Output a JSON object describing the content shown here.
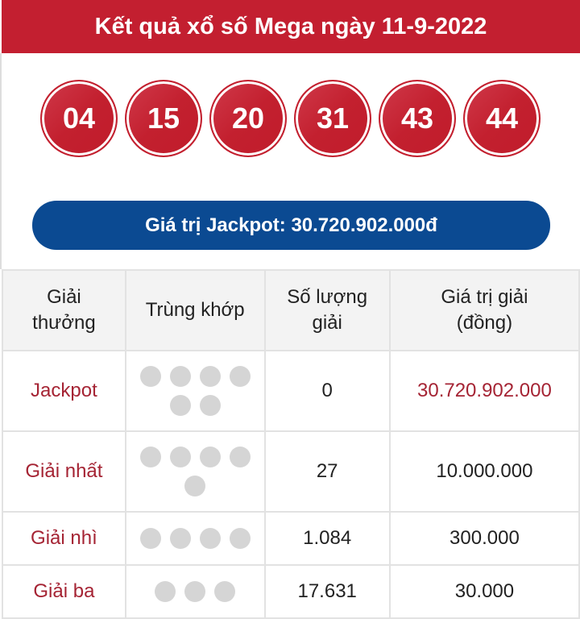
{
  "title": "Kết quả xổ số Mega ngày 11-9-2022",
  "numbers": [
    "04",
    "15",
    "20",
    "31",
    "43",
    "44"
  ],
  "jackpot_label": "Giá trị Jackpot: 30.720.902.000đ",
  "table": {
    "headers": [
      "Giải thưởng",
      "Trùng khớp",
      "Số lượng giải",
      "Giá trị giải (đồng)"
    ],
    "rows": [
      {
        "prize": "Jackpot",
        "matches": 6,
        "count": "0",
        "value": "30.720.902.000"
      },
      {
        "prize": "Giải nhất",
        "matches": 5,
        "count": "27",
        "value": "10.000.000"
      },
      {
        "prize": "Giải nhì",
        "matches": 4,
        "count": "1.084",
        "value": "300.000"
      },
      {
        "prize": "Giải ba",
        "matches": 3,
        "count": "17.631",
        "value": "30.000"
      }
    ]
  },
  "colors": {
    "header": "#c31f30",
    "jackpot_bar": "#0b4a92",
    "prize_text": "#a52434"
  }
}
